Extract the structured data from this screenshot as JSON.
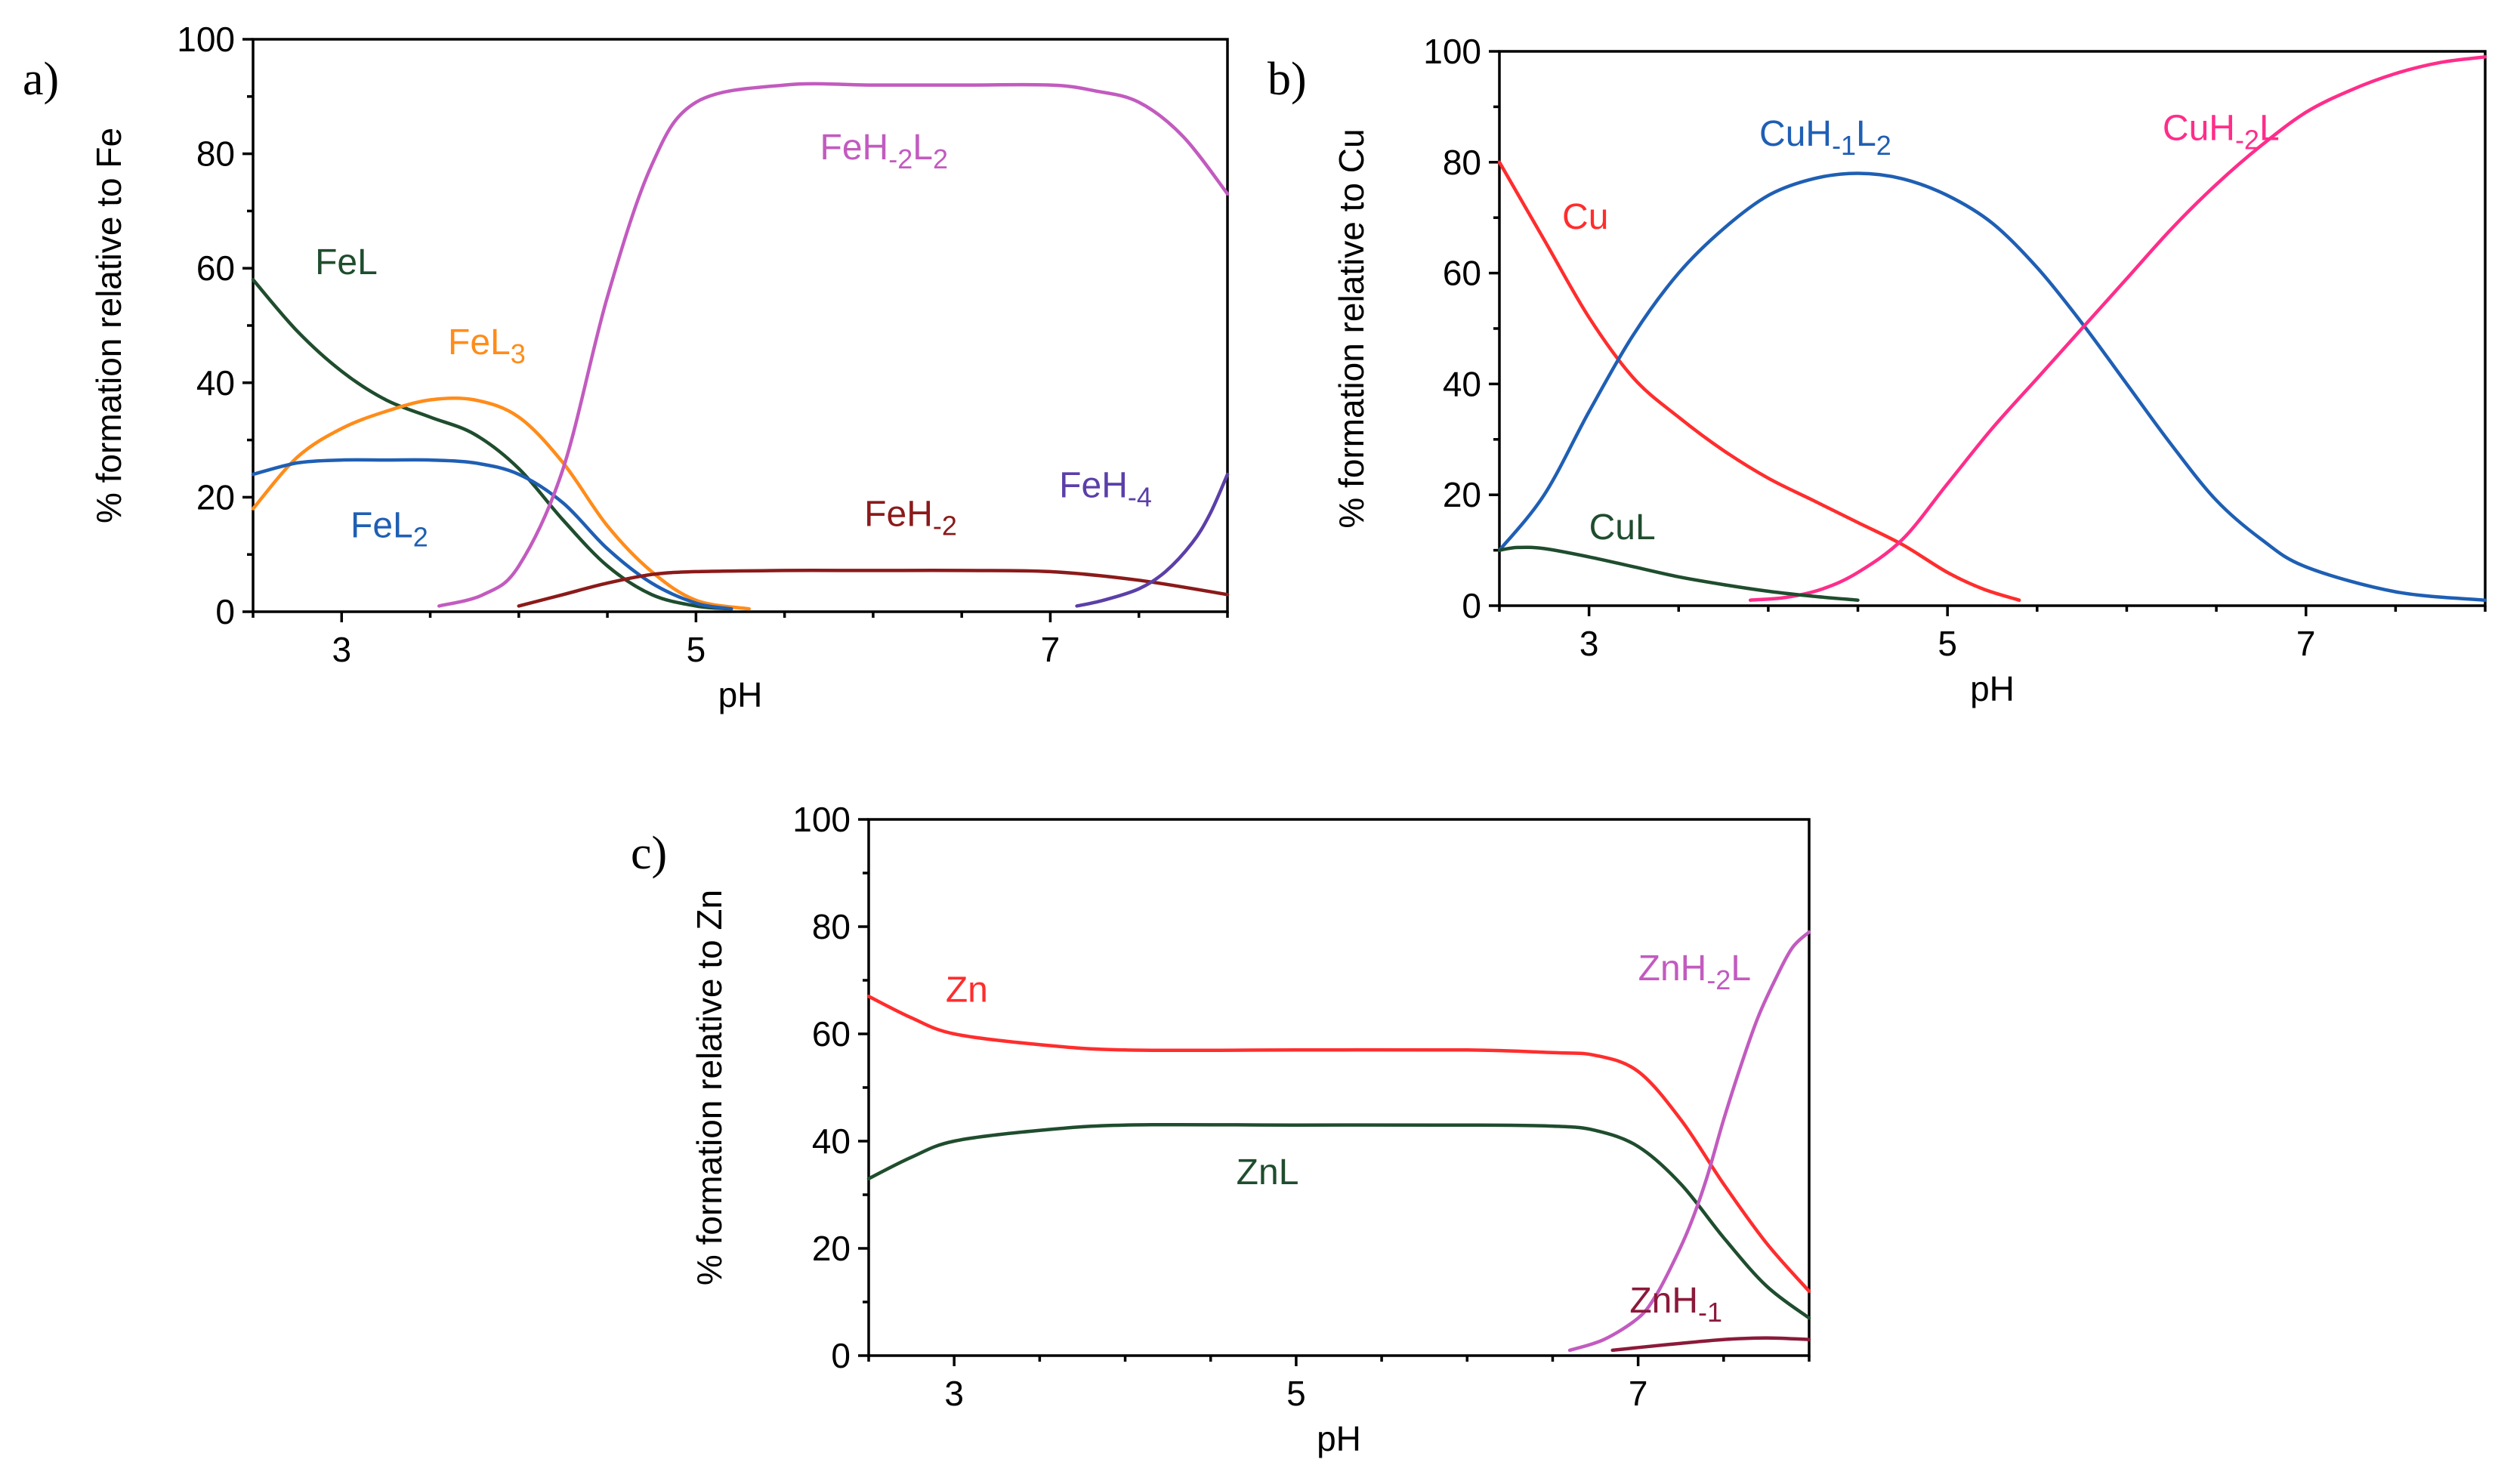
{
  "chart_data": [
    {
      "panel": "a)",
      "type": "line",
      "xlabel": "pH",
      "ylabel": "% formation relative to Fe",
      "xlim": [
        2.5,
        8
      ],
      "ylim": [
        0,
        100
      ],
      "xticks": [
        3,
        5,
        7
      ],
      "yticks": [
        0,
        20,
        40,
        60,
        80,
        100
      ],
      "series": [
        {
          "key": "FeL",
          "label": {
            "main": "FeL",
            "sub": ""
          },
          "color": "#1f4d2e",
          "label_at": [
            2.85,
            59
          ],
          "x": [
            2.5,
            2.75,
            3.0,
            3.25,
            3.5,
            3.75,
            4.0,
            4.25,
            4.5,
            4.75,
            5.0,
            5.2
          ],
          "y": [
            58,
            49,
            42,
            37,
            34,
            31,
            25,
            16,
            8,
            3,
            1,
            0.5
          ]
        },
        {
          "key": "FeL3",
          "label": {
            "main": "FeL",
            "sub": "3"
          },
          "color": "#ff8c1a",
          "label_at": [
            3.6,
            45
          ],
          "x": [
            2.5,
            2.75,
            3.0,
            3.25,
            3.5,
            3.75,
            4.0,
            4.25,
            4.5,
            4.75,
            5.0,
            5.3
          ],
          "y": [
            18,
            27,
            32,
            35,
            37,
            37,
            34,
            26,
            15,
            7,
            2,
            0.5
          ]
        },
        {
          "key": "FeL2",
          "label": {
            "main": "FeL",
            "sub": "2"
          },
          "color": "#1f5fb4",
          "label_at": [
            3.05,
            13
          ],
          "x": [
            2.5,
            2.75,
            3.0,
            3.25,
            3.5,
            3.75,
            4.0,
            4.25,
            4.5,
            4.75,
            5.0,
            5.2
          ],
          "y": [
            24,
            26,
            26.5,
            26.5,
            26.5,
            26,
            24,
            19,
            11,
            5,
            1.5,
            0.5
          ]
        },
        {
          "key": "FeH-2L2",
          "label": {
            "main": "FeH",
            "sub": "-2",
            "main2": "L",
            "sub2": "2"
          },
          "color": "#c25bbf",
          "label_at": [
            5.7,
            79
          ],
          "x": [
            3.55,
            3.8,
            4.0,
            4.25,
            4.5,
            4.75,
            5.0,
            5.5,
            6.0,
            6.5,
            7.0,
            7.25,
            7.5,
            7.75,
            8.0
          ],
          "y": [
            1,
            3,
            8,
            25,
            55,
            78,
            89,
            92,
            92,
            92,
            92,
            91,
            89,
            83,
            73
          ]
        },
        {
          "key": "FeH-2",
          "label": {
            "main": "FeH",
            "sub": "-2"
          },
          "color": "#8b1a1a",
          "label_at": [
            5.95,
            15
          ],
          "x": [
            4.0,
            4.25,
            4.5,
            4.75,
            5.0,
            5.5,
            6.0,
            6.5,
            7.0,
            7.5,
            8.0
          ],
          "y": [
            1,
            3,
            5,
            6.5,
            7,
            7.2,
            7.2,
            7.2,
            7,
            5.5,
            3
          ]
        },
        {
          "key": "FeH-4",
          "label": {
            "main": "FeH",
            "sub": "-4"
          },
          "color": "#5b3fa8",
          "label_at": [
            7.05,
            20
          ],
          "x": [
            7.15,
            7.3,
            7.5,
            7.65,
            7.8,
            7.9,
            8.0
          ],
          "y": [
            1,
            2,
            4,
            7,
            12,
            17,
            24
          ]
        }
      ]
    },
    {
      "panel": "b)",
      "type": "line",
      "xlabel": "pH",
      "ylabel": "% formation relative to Cu",
      "xlim": [
        2.5,
        8
      ],
      "ylim": [
        0,
        100
      ],
      "xticks": [
        3,
        5,
        7
      ],
      "yticks": [
        0,
        20,
        40,
        60,
        80,
        100
      ],
      "series": [
        {
          "key": "Cu",
          "label": {
            "main": "Cu",
            "sub": ""
          },
          "color": "#ff2d2d",
          "label_at": [
            2.85,
            68
          ],
          "x": [
            2.5,
            2.75,
            3.0,
            3.25,
            3.5,
            3.75,
            4.0,
            4.25,
            4.5,
            4.75,
            5.0,
            5.2,
            5.4
          ],
          "y": [
            80,
            66,
            52,
            41,
            34,
            28,
            23,
            19,
            15,
            11,
            6,
            3,
            1
          ]
        },
        {
          "key": "CuH-1L2",
          "label": {
            "main": "CuH",
            "sub": "-1",
            "main2": "L",
            "sub2": "2"
          },
          "color": "#1f5fb4",
          "label_at": [
            3.95,
            83
          ],
          "x": [
            2.5,
            2.75,
            3.0,
            3.25,
            3.5,
            3.75,
            4.0,
            4.25,
            4.5,
            4.75,
            5.0,
            5.25,
            5.5,
            5.75,
            6.0,
            6.25,
            6.5,
            6.75,
            7.0,
            7.5,
            8.0
          ],
          "y": [
            10,
            20,
            35,
            49,
            60,
            68,
            74,
            77,
            78,
            77,
            74,
            69,
            61,
            51,
            40,
            29,
            19,
            12,
            7,
            2.5,
            1
          ]
        },
        {
          "key": "CuH-2L",
          "label": {
            "main": "CuH",
            "sub": "-2",
            "main2": "L",
            "sub2": ""
          },
          "color": "#ff2d8a",
          "label_at": [
            6.2,
            84
          ],
          "x": [
            3.9,
            4.1,
            4.3,
            4.5,
            4.75,
            5.0,
            5.25,
            5.5,
            5.75,
            6.0,
            6.25,
            6.5,
            6.75,
            7.0,
            7.25,
            7.5,
            7.75,
            8.0
          ],
          "y": [
            1,
            1.5,
            3,
            6,
            12,
            22,
            32,
            41,
            50,
            59,
            68,
            76,
            83,
            89,
            93,
            96,
            98,
            99
          ]
        },
        {
          "key": "CuL",
          "label": {
            "main": "CuL",
            "sub": ""
          },
          "color": "#1f4d2e",
          "label_at": [
            3.0,
            12
          ],
          "x": [
            2.5,
            2.6,
            2.75,
            3.0,
            3.25,
            3.5,
            3.75,
            4.0,
            4.25,
            4.5
          ],
          "y": [
            10,
            10.5,
            10.3,
            8.8,
            7,
            5.2,
            3.8,
            2.6,
            1.7,
            1
          ]
        }
      ]
    },
    {
      "panel": "c)",
      "type": "line",
      "xlabel": "pH",
      "ylabel": "% formation relative to Zn",
      "xlim": [
        2.5,
        8
      ],
      "ylim": [
        0,
        100
      ],
      "xticks": [
        3,
        5,
        7
      ],
      "yticks": [
        0,
        20,
        40,
        60,
        80,
        100
      ],
      "series": [
        {
          "key": "Zn",
          "label": {
            "main": "Zn",
            "sub": ""
          },
          "color": "#ff2d2d",
          "label_at": [
            2.95,
            66
          ],
          "x": [
            2.5,
            2.75,
            3.0,
            3.5,
            4.0,
            5.0,
            6.0,
            6.5,
            6.75,
            7.0,
            7.25,
            7.5,
            7.75,
            8.0
          ],
          "y": [
            67,
            63,
            60,
            58,
            57,
            57,
            57,
            56.5,
            56,
            53,
            44,
            32,
            21,
            12
          ]
        },
        {
          "key": "ZnL",
          "label": {
            "main": "ZnL",
            "sub": ""
          },
          "color": "#1f4d2e",
          "label_at": [
            4.65,
            32
          ],
          "x": [
            2.5,
            2.75,
            3.0,
            3.5,
            4.0,
            5.0,
            6.0,
            6.5,
            6.75,
            7.0,
            7.25,
            7.5,
            7.75,
            8.0
          ],
          "y": [
            33,
            37,
            40,
            42,
            43,
            43,
            43,
            42.8,
            42,
            39,
            32,
            22,
            13,
            7
          ]
        },
        {
          "key": "ZnH-2L",
          "label": {
            "main": "ZnH",
            "sub": "-2",
            "main2": "L",
            "sub2": ""
          },
          "color": "#c25bbf",
          "label_at": [
            7.0,
            70
          ],
          "x": [
            6.6,
            6.8,
            7.0,
            7.1,
            7.2,
            7.3,
            7.4,
            7.5,
            7.6,
            7.7,
            7.8,
            7.9,
            8.0
          ],
          "y": [
            1,
            3,
            7,
            11,
            17,
            24,
            33,
            44,
            54,
            63,
            70,
            76,
            79
          ]
        },
        {
          "key": "ZnH-1",
          "label": {
            "main": "ZnH",
            "sub": "-1"
          },
          "color": "#8b1a3a",
          "label_at": [
            6.95,
            8
          ],
          "x": [
            6.85,
            7.0,
            7.25,
            7.5,
            7.75,
            8.0
          ],
          "y": [
            1,
            1.5,
            2.3,
            3,
            3.3,
            3
          ]
        }
      ]
    }
  ]
}
